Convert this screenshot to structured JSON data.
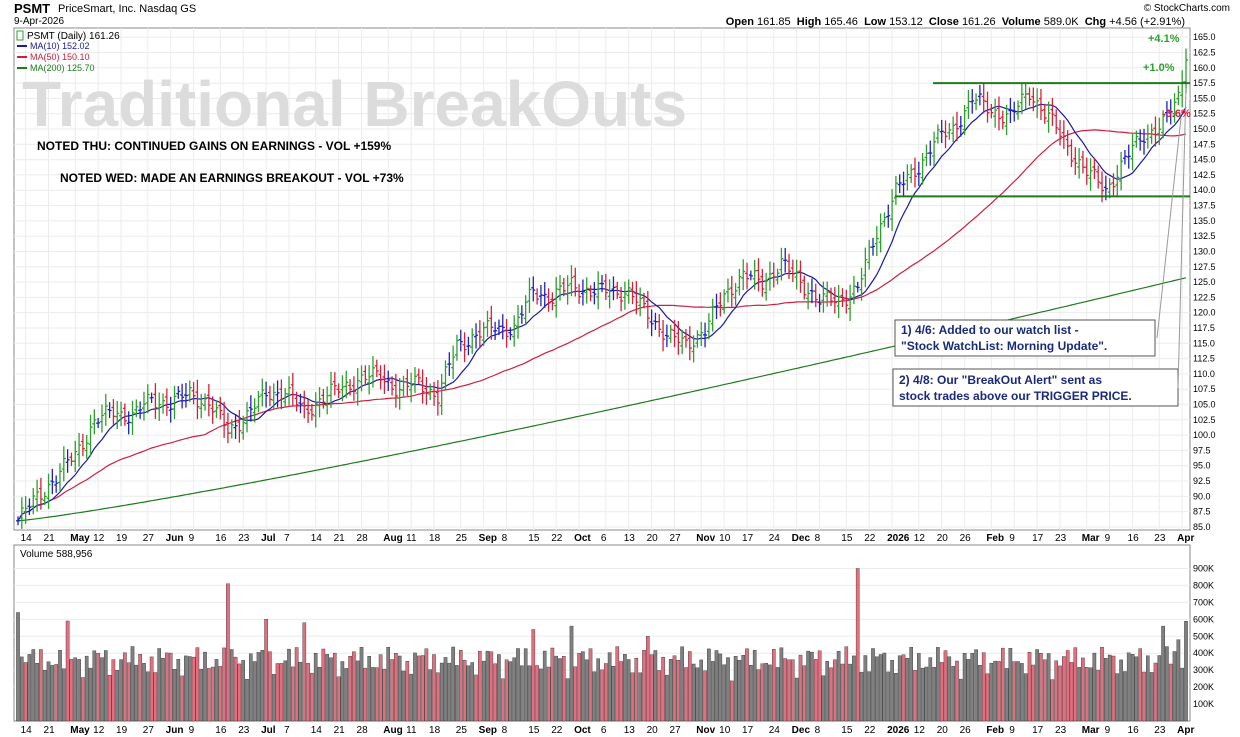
{
  "header": {
    "ticker": "PSMT",
    "company": "PriceSmart, Inc. Nasdaq GS",
    "date": "9-Apr-2026",
    "copyright": "© StockCharts.com",
    "open_label": "Open",
    "open": "161.85",
    "high_label": "High",
    "high": "165.46",
    "low_label": "Low",
    "low": "153.12",
    "close_label": "Close",
    "close": "161.26",
    "volume_label": "Volume",
    "volume": "589.0K",
    "chg_label": "Chg",
    "chg": "+4.56 (+2.91%)"
  },
  "legend": {
    "price": "PSMT (Daily) 161.26",
    "ma10": "MA(10) 152.02",
    "ma50": "MA(50) 150.10",
    "ma200": "MA(200) 125.70"
  },
  "colors": {
    "up_bar": "#2ca02c",
    "down_bar": "#d6203a",
    "neutral_bar": "#1f1fc8",
    "ma10": "#1a1aa0",
    "ma50": "#cc2040",
    "ma200": "#1f7a1f",
    "resistance": "#1f7a1f",
    "vol_up": "#808080",
    "vol_down": "#e07080"
  },
  "annotations": {
    "watermark": "Traditional BreakOuts",
    "note1": "NOTED THU: CONTINUED GAINS ON EARNINGS - VOL +159%",
    "note2": "NOTED WED: MADE AN EARNINGS BREAKOUT - VOL +73%",
    "box1_line1": "1) 4/6: Added to our watch list -",
    "box1_line2": "\"Stock WatchList: Morning Update\".",
    "box2_line1": "2) 4/8: Our \"BreakOut Alert\" sent as",
    "box2_line2": "stock trades above our TRIGGER PRICE.",
    "pct1": "+4.1%",
    "pct2": "+1.0%",
    "pct3": "-3.6%"
  },
  "chart_data": [
    {
      "type": "ohlc-bar",
      "ylim": [
        84.5,
        166.5
      ],
      "y_ticks": [
        85.0,
        87.5,
        90.0,
        92.5,
        95.0,
        97.5,
        100.0,
        102.5,
        105.0,
        107.5,
        110.0,
        112.5,
        115.0,
        117.5,
        120.0,
        122.5,
        125.0,
        127.5,
        130.0,
        132.5,
        135.0,
        137.5,
        140.0,
        142.5,
        145.0,
        147.5,
        150.0,
        152.5,
        155.0,
        157.5,
        160.0,
        162.5,
        165.0
      ],
      "x_tick_labels": [
        "14",
        "21",
        "May",
        "12",
        "19",
        "27",
        "Jun",
        "9",
        "16",
        "23",
        "Jul",
        "7",
        "14",
        "21",
        "28",
        "Aug",
        "11",
        "18",
        "25",
        "Sep",
        "8",
        "15",
        "22",
        "Oct",
        "6",
        "13",
        "20",
        "27",
        "Nov",
        "10",
        "17",
        "24",
        "Dec",
        "8",
        "15",
        "22",
        "2026",
        "12",
        "20",
        "26",
        "Feb",
        "9",
        "17",
        "23",
        "Mar",
        "9",
        "16",
        "23",
        "Apr"
      ],
      "resistance_levels": [
        157.5,
        139.0
      ],
      "close_anchors": [
        [
          0,
          86
        ],
        [
          5,
          90
        ],
        [
          10,
          93
        ],
        [
          15,
          97
        ],
        [
          20,
          102
        ],
        [
          25,
          104
        ],
        [
          30,
          103
        ],
        [
          35,
          106
        ],
        [
          40,
          105
        ],
        [
          45,
          107
        ],
        [
          50,
          105
        ],
        [
          55,
          101
        ],
        [
          60,
          103
        ],
        [
          65,
          107
        ],
        [
          70,
          107
        ],
        [
          75,
          104
        ],
        [
          80,
          106
        ],
        [
          85,
          108
        ],
        [
          90,
          109
        ],
        [
          95,
          110
        ],
        [
          100,
          107
        ],
        [
          105,
          109
        ],
        [
          110,
          106
        ],
        [
          115,
          115
        ],
        [
          120,
          116
        ],
        [
          125,
          118
        ],
        [
          130,
          117
        ],
        [
          135,
          124
        ],
        [
          140,
          122
        ],
        [
          145,
          125
        ],
        [
          150,
          123
        ],
        [
          155,
          124
        ],
        [
          160,
          123
        ],
        [
          165,
          120
        ],
        [
          170,
          116
        ],
        [
          175,
          115
        ],
        [
          180,
          117
        ],
        [
          185,
          123
        ],
        [
          190,
          126
        ],
        [
          195,
          125
        ],
        [
          200,
          128
        ],
        [
          205,
          125
        ],
        [
          210,
          122
        ],
        [
          215,
          122
        ],
        [
          220,
          124
        ],
        [
          225,
          133
        ],
        [
          230,
          140
        ],
        [
          235,
          143
        ],
        [
          240,
          148
        ],
        [
          245,
          150
        ],
        [
          250,
          155
        ],
        [
          255,
          153
        ],
        [
          260,
          152
        ],
        [
          265,
          156
        ],
        [
          270,
          152
        ],
        [
          275,
          147
        ],
        [
          280,
          143
        ],
        [
          285,
          140
        ],
        [
          290,
          145
        ],
        [
          295,
          149
        ],
        [
          300,
          151
        ],
        [
          304,
          155
        ],
        [
          306,
          161.26
        ]
      ],
      "volume": {
        "label": "Volume 588,956",
        "ylim": [
          0,
          950000
        ],
        "y_ticks": [
          "100K",
          "200K",
          "300K",
          "400K",
          "500K",
          "600K",
          "700K",
          "800K",
          "900K"
        ],
        "last": 588956
      }
    }
  ]
}
